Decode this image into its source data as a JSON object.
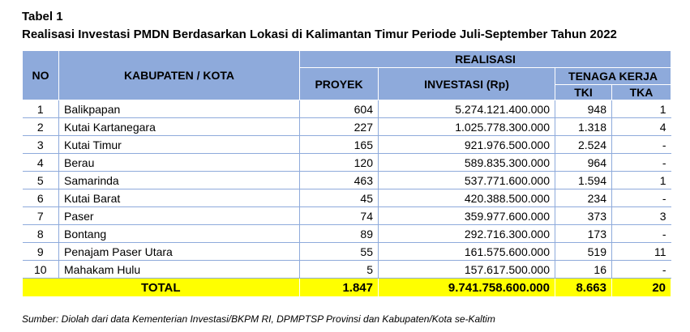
{
  "table_label": "Tabel 1",
  "table_title": "Realisasi Investasi PMDN Berdasarkan Lokasi di Kalimantan Timur Periode Juli-September Tahun 2022",
  "header": {
    "no": "NO",
    "kabupaten": "KABUPATEN / KOTA",
    "realisasi": "REALISASI",
    "proyek": "PROYEK",
    "investasi": "INVESTASI (Rp)",
    "tenaga_kerja": "TENAGA KERJA",
    "tki": "TKI",
    "tka": "TKA"
  },
  "rows": [
    {
      "no": "1",
      "name": "Balikpapan",
      "proyek": "604",
      "investasi": "5.274.121.400.000",
      "tki": "948",
      "tka": "1"
    },
    {
      "no": "2",
      "name": "Kutai Kartanegara",
      "proyek": "227",
      "investasi": "1.025.778.300.000",
      "tki": "1.318",
      "tka": "4"
    },
    {
      "no": "3",
      "name": "Kutai Timur",
      "proyek": "165",
      "investasi": "921.976.500.000",
      "tki": "2.524",
      "tka": "-"
    },
    {
      "no": "4",
      "name": "Berau",
      "proyek": "120",
      "investasi": "589.835.300.000",
      "tki": "964",
      "tka": "-"
    },
    {
      "no": "5",
      "name": "Samarinda",
      "proyek": "463",
      "investasi": "537.771.600.000",
      "tki": "1.594",
      "tka": "1"
    },
    {
      "no": "6",
      "name": "Kutai Barat",
      "proyek": "45",
      "investasi": "420.388.500.000",
      "tki": "234",
      "tka": "-"
    },
    {
      "no": "7",
      "name": "Paser",
      "proyek": "74",
      "investasi": "359.977.600.000",
      "tki": "373",
      "tka": "3"
    },
    {
      "no": "8",
      "name": "Bontang",
      "proyek": "89",
      "investasi": "292.716.300.000",
      "tki": "173",
      "tka": "-"
    },
    {
      "no": "9",
      "name": "Penajam Paser Utara",
      "proyek": "55",
      "investasi": "161.575.600.000",
      "tki": "519",
      "tka": "11"
    },
    {
      "no": "10",
      "name": "Mahakam Hulu",
      "proyek": "5",
      "investasi": "157.617.500.000",
      "tki": "16",
      "tka": "-"
    }
  ],
  "total": {
    "label": "TOTAL",
    "proyek": "1.847",
    "investasi": "9.741.758.600.000",
    "tki": "8.663",
    "tka": "20"
  },
  "source": "Sumber: Diolah dari data Kementerian Investasi/BKPM RI, DPMPTSP Provinsi dan Kabupaten/Kota se-Kaltim",
  "colors": {
    "header_bg": "#8eaadb",
    "total_bg": "#ffff00",
    "rule": "#8eaadb"
  }
}
